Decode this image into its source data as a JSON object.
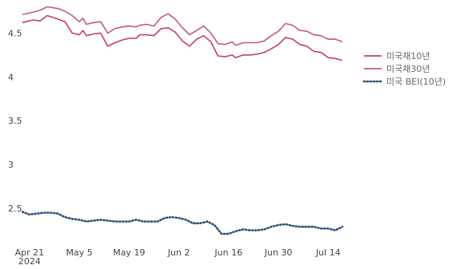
{
  "chart_data": {
    "type": "line",
    "title": "",
    "xlabel": "",
    "ylabel": "",
    "x_ticks": [
      "Apr 21",
      "May 5",
      "May 19",
      "Jun 2",
      "Jun 16",
      "Jun 30",
      "Jul 14"
    ],
    "x_tick_year": "2024",
    "y_ticks": [
      "2.5",
      "3",
      "3.5",
      "4",
      "4.5"
    ],
    "ylim": [
      2.2,
      4.85
    ],
    "x_range": [
      "2024-04-19",
      "2024-07-18"
    ],
    "grid": false,
    "legend_position": "right",
    "series": [
      {
        "name": "미국채10년",
        "color": "#c4405f",
        "style": "solid",
        "points": [
          [
            "2024-04-19",
            4.62
          ],
          [
            "2024-04-22",
            4.65
          ],
          [
            "2024-04-24",
            4.64
          ],
          [
            "2024-04-26",
            4.7
          ],
          [
            "2024-04-29",
            4.66
          ],
          [
            "2024-05-01",
            4.63
          ],
          [
            "2024-05-03",
            4.5
          ],
          [
            "2024-05-05",
            4.48
          ],
          [
            "2024-05-06",
            4.53
          ],
          [
            "2024-05-07",
            4.47
          ],
          [
            "2024-05-09",
            4.49
          ],
          [
            "2024-05-11",
            4.5
          ],
          [
            "2024-05-13",
            4.35
          ],
          [
            "2024-05-15",
            4.39
          ],
          [
            "2024-05-17",
            4.42
          ],
          [
            "2024-05-19",
            4.44
          ],
          [
            "2024-05-21",
            4.44
          ],
          [
            "2024-05-22",
            4.48
          ],
          [
            "2024-05-24",
            4.48
          ],
          [
            "2024-05-26",
            4.47
          ],
          [
            "2024-05-28",
            4.55
          ],
          [
            "2024-05-30",
            4.56
          ],
          [
            "2024-06-01",
            4.51
          ],
          [
            "2024-06-03",
            4.41
          ],
          [
            "2024-06-05",
            4.35
          ],
          [
            "2024-06-07",
            4.43
          ],
          [
            "2024-06-09",
            4.47
          ],
          [
            "2024-06-11",
            4.4
          ],
          [
            "2024-06-13",
            4.24
          ],
          [
            "2024-06-15",
            4.23
          ],
          [
            "2024-06-17",
            4.25
          ],
          [
            "2024-06-18",
            4.22
          ],
          [
            "2024-06-20",
            4.25
          ],
          [
            "2024-06-22",
            4.25
          ],
          [
            "2024-06-24",
            4.26
          ],
          [
            "2024-06-26",
            4.28
          ],
          [
            "2024-06-28",
            4.32
          ],
          [
            "2024-06-30",
            4.37
          ],
          [
            "2024-07-02",
            4.45
          ],
          [
            "2024-07-04",
            4.43
          ],
          [
            "2024-07-06",
            4.37
          ],
          [
            "2024-07-08",
            4.35
          ],
          [
            "2024-07-10",
            4.29
          ],
          [
            "2024-07-12",
            4.28
          ],
          [
            "2024-07-14",
            4.22
          ],
          [
            "2024-07-16",
            4.21
          ],
          [
            "2024-07-18",
            4.19
          ]
        ]
      },
      {
        "name": "미국채30년",
        "color": "#c45a74",
        "style": "solid",
        "points": [
          [
            "2024-04-19",
            4.71
          ],
          [
            "2024-04-22",
            4.74
          ],
          [
            "2024-04-24",
            4.76
          ],
          [
            "2024-04-26",
            4.8
          ],
          [
            "2024-04-29",
            4.78
          ],
          [
            "2024-05-01",
            4.75
          ],
          [
            "2024-05-03",
            4.7
          ],
          [
            "2024-05-05",
            4.63
          ],
          [
            "2024-05-06",
            4.67
          ],
          [
            "2024-05-07",
            4.6
          ],
          [
            "2024-05-09",
            4.62
          ],
          [
            "2024-05-11",
            4.63
          ],
          [
            "2024-05-13",
            4.5
          ],
          [
            "2024-05-15",
            4.55
          ],
          [
            "2024-05-17",
            4.57
          ],
          [
            "2024-05-19",
            4.58
          ],
          [
            "2024-05-21",
            4.57
          ],
          [
            "2024-05-22",
            4.59
          ],
          [
            "2024-05-24",
            4.6
          ],
          [
            "2024-05-26",
            4.58
          ],
          [
            "2024-05-28",
            4.68
          ],
          [
            "2024-05-30",
            4.72
          ],
          [
            "2024-06-01",
            4.66
          ],
          [
            "2024-06-03",
            4.56
          ],
          [
            "2024-06-05",
            4.48
          ],
          [
            "2024-06-07",
            4.53
          ],
          [
            "2024-06-09",
            4.58
          ],
          [
            "2024-06-11",
            4.5
          ],
          [
            "2024-06-13",
            4.38
          ],
          [
            "2024-06-15",
            4.37
          ],
          [
            "2024-06-17",
            4.4
          ],
          [
            "2024-06-18",
            4.36
          ],
          [
            "2024-06-20",
            4.39
          ],
          [
            "2024-06-22",
            4.39
          ],
          [
            "2024-06-24",
            4.39
          ],
          [
            "2024-06-26",
            4.41
          ],
          [
            "2024-06-28",
            4.47
          ],
          [
            "2024-06-30",
            4.52
          ],
          [
            "2024-07-02",
            4.61
          ],
          [
            "2024-07-04",
            4.59
          ],
          [
            "2024-07-06",
            4.53
          ],
          [
            "2024-07-08",
            4.52
          ],
          [
            "2024-07-10",
            4.48
          ],
          [
            "2024-07-12",
            4.47
          ],
          [
            "2024-07-14",
            4.43
          ],
          [
            "2024-07-16",
            4.43
          ],
          [
            "2024-07-18",
            4.4
          ]
        ]
      },
      {
        "name": "미국 BEI(10년)",
        "color": "#2b4f73",
        "style": "dotted",
        "points": [
          [
            "2024-04-19",
            2.46
          ],
          [
            "2024-04-21",
            2.43
          ],
          [
            "2024-04-23",
            2.44
          ],
          [
            "2024-04-25",
            2.45
          ],
          [
            "2024-04-27",
            2.45
          ],
          [
            "2024-04-29",
            2.44
          ],
          [
            "2024-05-01",
            2.4
          ],
          [
            "2024-05-03",
            2.38
          ],
          [
            "2024-05-05",
            2.37
          ],
          [
            "2024-05-07",
            2.35
          ],
          [
            "2024-05-09",
            2.36
          ],
          [
            "2024-05-11",
            2.37
          ],
          [
            "2024-05-13",
            2.36
          ],
          [
            "2024-05-15",
            2.35
          ],
          [
            "2024-05-17",
            2.35
          ],
          [
            "2024-05-19",
            2.35
          ],
          [
            "2024-05-21",
            2.37
          ],
          [
            "2024-05-23",
            2.35
          ],
          [
            "2024-05-25",
            2.35
          ],
          [
            "2024-05-27",
            2.35
          ],
          [
            "2024-05-29",
            2.39
          ],
          [
            "2024-05-31",
            2.4
          ],
          [
            "2024-06-02",
            2.39
          ],
          [
            "2024-06-04",
            2.37
          ],
          [
            "2024-06-06",
            2.33
          ],
          [
            "2024-06-08",
            2.33
          ],
          [
            "2024-06-10",
            2.35
          ],
          [
            "2024-06-12",
            2.31
          ],
          [
            "2024-06-14",
            2.21
          ],
          [
            "2024-06-16",
            2.21
          ],
          [
            "2024-06-18",
            2.24
          ],
          [
            "2024-06-20",
            2.26
          ],
          [
            "2024-06-22",
            2.25
          ],
          [
            "2024-06-24",
            2.25
          ],
          [
            "2024-06-26",
            2.26
          ],
          [
            "2024-06-28",
            2.29
          ],
          [
            "2024-06-30",
            2.31
          ],
          [
            "2024-07-02",
            2.32
          ],
          [
            "2024-07-04",
            2.3
          ],
          [
            "2024-07-06",
            2.29
          ],
          [
            "2024-07-08",
            2.29
          ],
          [
            "2024-07-10",
            2.29
          ],
          [
            "2024-07-12",
            2.27
          ],
          [
            "2024-07-14",
            2.27
          ],
          [
            "2024-07-16",
            2.25
          ],
          [
            "2024-07-18",
            2.29
          ]
        ]
      }
    ]
  }
}
